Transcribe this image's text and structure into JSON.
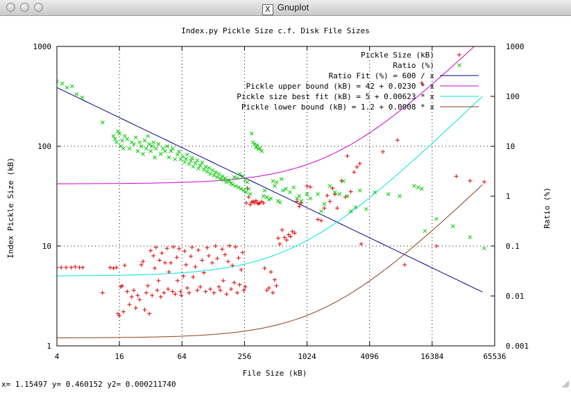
{
  "window": {
    "title": "Gnuplot",
    "icon": "x11-icon"
  },
  "status_bar": {
    "text": "x= 1.15497 y= 0.460152 y2= 0.000211740"
  },
  "chart_data": {
    "type": "scatter",
    "title": "Index.py Pickle Size c.f. Disk File Sizes",
    "xlabel": "File Size (kB)",
    "ylabel": "Index Pickle Size (kB)",
    "y2label": "Ratio (%)",
    "xscale": "log2",
    "yscale": "log10",
    "y2scale": "log10",
    "xlim": [
      4,
      65536
    ],
    "ylim": [
      1,
      1000
    ],
    "y2lim": [
      0.001,
      1000
    ],
    "xticks": [
      {
        "value": 4,
        "label": "4"
      },
      {
        "value": 16,
        "label": "16"
      },
      {
        "value": 64,
        "label": "64"
      },
      {
        "value": 256,
        "label": "256"
      },
      {
        "value": 1024,
        "label": "1024"
      },
      {
        "value": 4096,
        "label": "4096"
      },
      {
        "value": 16384,
        "label": "16384"
      },
      {
        "value": 65536,
        "label": "65536"
      }
    ],
    "yticks": [
      {
        "value": 1,
        "label": "1"
      },
      {
        "value": 10,
        "label": "10"
      },
      {
        "value": 100,
        "label": "100"
      },
      {
        "value": 1000,
        "label": "1000"
      }
    ],
    "y2ticks": [
      {
        "value": 0.001,
        "label": "0.001"
      },
      {
        "value": 0.01,
        "label": "0.01"
      },
      {
        "value": 0.1,
        "label": "0.1"
      },
      {
        "value": 1,
        "label": "1"
      },
      {
        "value": 10,
        "label": "10"
      },
      {
        "value": 100,
        "label": "100"
      },
      {
        "value": 1000,
        "label": "1000"
      }
    ],
    "grid": true,
    "legend_position": "top-right",
    "series": [
      {
        "name": "Pickle Size (kB)",
        "kind": "points",
        "marker": "+",
        "color": "#dd0000",
        "axis": "y",
        "points": [
          [
            4,
            6.1
          ],
          [
            4.4,
            6.1
          ],
          [
            4.9,
            6.1
          ],
          [
            5.5,
            6.1
          ],
          [
            6,
            6.2
          ],
          [
            6.6,
            6.1
          ],
          [
            7.1,
            6.1
          ],
          [
            11,
            3.4
          ],
          [
            13,
            6.1
          ],
          [
            14,
            6.0
          ],
          [
            15,
            6.1
          ],
          [
            15.5,
            2.1
          ],
          [
            16,
            2.0
          ],
          [
            16.5,
            3.9
          ],
          [
            17,
            4.0
          ],
          [
            17.5,
            2.2
          ],
          [
            18,
            6.4
          ],
          [
            19,
            3.5
          ],
          [
            20,
            2.6
          ],
          [
            21,
            3.1
          ],
          [
            22,
            3.6
          ],
          [
            23,
            2.4
          ],
          [
            24,
            3.2
          ],
          [
            25,
            2.9
          ],
          [
            26,
            6.5
          ],
          [
            27,
            7.0
          ],
          [
            28,
            2.3
          ],
          [
            29,
            3.4
          ],
          [
            30,
            4.0
          ],
          [
            31,
            2.1
          ],
          [
            32,
            9.0
          ],
          [
            33,
            3.2
          ],
          [
            34,
            8.0
          ],
          [
            35,
            6.0
          ],
          [
            36,
            9.7
          ],
          [
            37,
            3.6
          ],
          [
            38,
            4.5
          ],
          [
            39,
            7.2
          ],
          [
            40,
            3.1
          ],
          [
            41,
            8.5
          ],
          [
            43,
            3.4
          ],
          [
            44,
            6.8
          ],
          [
            46,
            9.5
          ],
          [
            47,
            3.7
          ],
          [
            48,
            5.5
          ],
          [
            50,
            6.8
          ],
          [
            52,
            3.5
          ],
          [
            53,
            9.8
          ],
          [
            55,
            3.3
          ],
          [
            57,
            7.7
          ],
          [
            58,
            4.5
          ],
          [
            60,
            9.4
          ],
          [
            62,
            3.5
          ],
          [
            63,
            3.2
          ],
          [
            66,
            5.0
          ],
          [
            68,
            8.9
          ],
          [
            70,
            6.5
          ],
          [
            72,
            3.8
          ],
          [
            75,
            3.4
          ],
          [
            78,
            7.9
          ],
          [
            80,
            9.7
          ],
          [
            82,
            4.9
          ],
          [
            86,
            6.2
          ],
          [
            90,
            3.6
          ],
          [
            92,
            9.1
          ],
          [
            96,
            3.9
          ],
          [
            100,
            7.2
          ],
          [
            104,
            5.4
          ],
          [
            108,
            3.5
          ],
          [
            112,
            9.6
          ],
          [
            116,
            8.0
          ],
          [
            120,
            3.7
          ],
          [
            125,
            6.8
          ],
          [
            130,
            3.4
          ],
          [
            135,
            10.0
          ],
          [
            140,
            7.5
          ],
          [
            145,
            3.9
          ],
          [
            150,
            3.6
          ],
          [
            156,
            9.3
          ],
          [
            160,
            4.5
          ],
          [
            166,
            8.2
          ],
          [
            172,
            3.3
          ],
          [
            178,
            7.0
          ],
          [
            184,
            10.1
          ],
          [
            190,
            3.7
          ],
          [
            196,
            6.4
          ],
          [
            204,
            4.3
          ],
          [
            210,
            9.8
          ],
          [
            218,
            3.4
          ],
          [
            224,
            7.6
          ],
          [
            230,
            4.1
          ],
          [
            238,
            5.8
          ],
          [
            246,
            8.6
          ],
          [
            252,
            3.6
          ],
          [
            260,
            3.9
          ],
          [
            266,
            27.0
          ],
          [
            272,
            38.0
          ],
          [
            280,
            31.0
          ],
          [
            290,
            26.0
          ],
          [
            300,
            27.5
          ],
          [
            310,
            28.0
          ],
          [
            320,
            27.0
          ],
          [
            330,
            28.5
          ],
          [
            340,
            27.0
          ],
          [
            350,
            26.5
          ],
          [
            360,
            27.0
          ],
          [
            375,
            28.0
          ],
          [
            390,
            27.0
          ],
          [
            400,
            6.0
          ],
          [
            420,
            3.6
          ],
          [
            440,
            3.8
          ],
          [
            460,
            5.5
          ],
          [
            480,
            3.4
          ],
          [
            500,
            4.6
          ],
          [
            520,
            4.0
          ],
          [
            540,
            12.0
          ],
          [
            560,
            10.5
          ],
          [
            590,
            14.5
          ],
          [
            620,
            12.2
          ],
          [
            650,
            11.5
          ],
          [
            680,
            13.0
          ],
          [
            710,
            12.4
          ],
          [
            740,
            14.0
          ],
          [
            780,
            13.5
          ],
          [
            820,
            28.0
          ],
          [
            860,
            25.0
          ],
          [
            900,
            27.0
          ],
          [
            1024,
            40.0
          ],
          [
            1100,
            39.0
          ],
          [
            1300,
            18.5
          ],
          [
            1400,
            18.0
          ],
          [
            1500,
            24.0
          ],
          [
            1600,
            32.0
          ],
          [
            1700,
            28.0
          ],
          [
            1800,
            38.0
          ],
          [
            1900,
            33.0
          ],
          [
            2000,
            24.0
          ],
          [
            2200,
            45.0
          ],
          [
            2400,
            31.0
          ],
          [
            2500,
            80.0
          ],
          [
            2700,
            35.0
          ],
          [
            2900,
            55.0
          ],
          [
            3100,
            62.0
          ],
          [
            3300,
            67.0
          ],
          [
            3400,
            10.5
          ],
          [
            5500,
            88.0
          ],
          [
            7600,
            115.0
          ],
          [
            8900,
            6.5
          ],
          [
            13000,
            430.0
          ],
          [
            18000,
            10.0
          ],
          [
            28000,
            50.0
          ],
          [
            38000,
            45.0
          ],
          [
            52000,
            44.0
          ]
        ]
      },
      {
        "name": "Ratio (%)",
        "kind": "points",
        "marker": "x",
        "color": "#00cc00",
        "axis": "y2",
        "points": [
          [
            4,
            200
          ],
          [
            4.5,
            180
          ],
          [
            5,
            150
          ],
          [
            5.6,
            160
          ],
          [
            6.2,
            110
          ],
          [
            7,
            95
          ],
          [
            11,
            30
          ],
          [
            14,
            16
          ],
          [
            14.5,
            14
          ],
          [
            15,
            12
          ],
          [
            15.5,
            20
          ],
          [
            16,
            18
          ],
          [
            16.5,
            10
          ],
          [
            17,
            13
          ],
          [
            17.5,
            9
          ],
          [
            18,
            16
          ],
          [
            19,
            14
          ],
          [
            20,
            9
          ],
          [
            21,
            12
          ],
          [
            22,
            11
          ],
          [
            23,
            15
          ],
          [
            24,
            8
          ],
          [
            25,
            12
          ],
          [
            26,
            10
          ],
          [
            27,
            7
          ],
          [
            28,
            13
          ],
          [
            29,
            9
          ],
          [
            30,
            16
          ],
          [
            31,
            11
          ],
          [
            32,
            8
          ],
          [
            33,
            10
          ],
          [
            34,
            12
          ],
          [
            35,
            6
          ],
          [
            36,
            9
          ],
          [
            38,
            11
          ],
          [
            40,
            7
          ],
          [
            42,
            9
          ],
          [
            44,
            8
          ],
          [
            46,
            10
          ],
          [
            48,
            6
          ],
          [
            50,
            8
          ],
          [
            52,
            9
          ],
          [
            55,
            5.5
          ],
          [
            58,
            6.8
          ],
          [
            60,
            7.8
          ],
          [
            62,
            5.5
          ],
          [
            65,
            6.2
          ],
          [
            68,
            4.8
          ],
          [
            70,
            5.6
          ],
          [
            72,
            6.8
          ],
          [
            75,
            4.4
          ],
          [
            78,
            5.1
          ],
          [
            80,
            5.8
          ],
          [
            82,
            3.9
          ],
          [
            86,
            4.6
          ],
          [
            90,
            5.2
          ],
          [
            92,
            3.6
          ],
          [
            96,
            4.1
          ],
          [
            100,
            4.7
          ],
          [
            104,
            3.4
          ],
          [
            108,
            3.9
          ],
          [
            112,
            3.1
          ],
          [
            116,
            3.7
          ],
          [
            120,
            2.8
          ],
          [
            125,
            3.3
          ],
          [
            130,
            2.6
          ],
          [
            135,
            3.0
          ],
          [
            140,
            2.4
          ],
          [
            145,
            2.8
          ],
          [
            150,
            2.2
          ],
          [
            156,
            2.5
          ],
          [
            160,
            2.1
          ],
          [
            166,
            2.3
          ],
          [
            172,
            1.9
          ],
          [
            178,
            2.1
          ],
          [
            184,
            2.0
          ],
          [
            190,
            1.8
          ],
          [
            196,
            1.7
          ],
          [
            204,
            2.4
          ],
          [
            210,
            1.6
          ],
          [
            218,
            2.3
          ],
          [
            224,
            1.5
          ],
          [
            230,
            2.8
          ],
          [
            238,
            1.4
          ],
          [
            246,
            2.5
          ],
          [
            252,
            1.3
          ],
          [
            260,
            2.1
          ],
          [
            266,
            1.2
          ],
          [
            272,
            1.9
          ],
          [
            280,
            1.4
          ],
          [
            290,
            1.1
          ],
          [
            300,
            18
          ],
          [
            310,
            12
          ],
          [
            320,
            11
          ],
          [
            330,
            9.5
          ],
          [
            340,
            10.5
          ],
          [
            350,
            8.8
          ],
          [
            360,
            9.2
          ],
          [
            375,
            8.0
          ],
          [
            390,
            1.0
          ],
          [
            400,
            1.3
          ],
          [
            420,
            0.95
          ],
          [
            440,
            0.85
          ],
          [
            460,
            0.9
          ],
          [
            480,
            2.0
          ],
          [
            500,
            1.6
          ],
          [
            520,
            1.9
          ],
          [
            540,
            0.8
          ],
          [
            560,
            0.75
          ],
          [
            580,
            2.2
          ],
          [
            600,
            1.3
          ],
          [
            640,
            1.4
          ],
          [
            700,
            1.2
          ],
          [
            760,
            1.5
          ],
          [
            820,
            0.9
          ],
          [
            860,
            1.0
          ],
          [
            900,
            0.8
          ],
          [
            1024,
            1.1
          ],
          [
            1100,
            0.9
          ],
          [
            1300,
            1.1
          ],
          [
            1400,
            0.5
          ],
          [
            1500,
            0.7
          ],
          [
            1700,
            1.6
          ],
          [
            1900,
            1.2
          ],
          [
            2100,
            1.1
          ],
          [
            2300,
            2.0
          ],
          [
            2500,
            1.0
          ],
          [
            2700,
            0.5
          ],
          [
            3000,
            0.6
          ],
          [
            3300,
            1.3
          ],
          [
            3800,
            0.55
          ],
          [
            4600,
            1.2
          ],
          [
            6200,
            1.1
          ],
          [
            8000,
            1.0
          ],
          [
            11000,
            1.6
          ],
          [
            12000,
            1.5
          ],
          [
            13000,
            1.4
          ],
          [
            14000,
            0.2
          ],
          [
            18000,
            0.35
          ],
          [
            26000,
            0.25
          ],
          [
            38000,
            0.15
          ],
          [
            52000,
            0.09
          ]
        ]
      },
      {
        "name": "Ratio Fit (%) = 600 / x",
        "kind": "line",
        "color": "#00008b",
        "axis": "y2"
      },
      {
        "name": "Pickle upper bound (kB) = 42 + 0.0230 * x",
        "kind": "line",
        "color": "#cc00cc",
        "axis": "y"
      },
      {
        "name": "Pickle size best fit (kB) = 5 + 0.00623 * x",
        "kind": "line",
        "color": "#00e0e0",
        "axis": "y"
      },
      {
        "name": "Pickle lower bound (kB) = 1.2 + 0.0008 * x",
        "kind": "line",
        "color": "#8b3a1a",
        "axis": "y"
      }
    ]
  }
}
